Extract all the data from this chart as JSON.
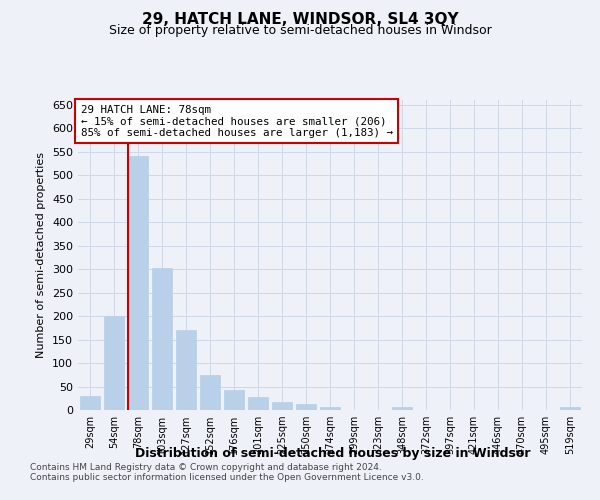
{
  "title": "29, HATCH LANE, WINDSOR, SL4 3QY",
  "subtitle": "Size of property relative to semi-detached houses in Windsor",
  "xlabel": "Distribution of semi-detached houses by size in Windsor",
  "ylabel": "Number of semi-detached properties",
  "categories": [
    "29sqm",
    "54sqm",
    "78sqm",
    "103sqm",
    "127sqm",
    "152sqm",
    "176sqm",
    "201sqm",
    "225sqm",
    "250sqm",
    "274sqm",
    "299sqm",
    "323sqm",
    "348sqm",
    "372sqm",
    "397sqm",
    "421sqm",
    "446sqm",
    "470sqm",
    "495sqm",
    "519sqm"
  ],
  "values": [
    30,
    200,
    541,
    303,
    170,
    75,
    42,
    27,
    16,
    13,
    7,
    0,
    0,
    6,
    0,
    0,
    0,
    0,
    0,
    0,
    6
  ],
  "bar_color": "#b8d0e8",
  "bar_edge_color": "#b8d0e8",
  "highlight_index": 2,
  "red_line_index": 2,
  "annotation_text": "29 HATCH LANE: 78sqm\n← 15% of semi-detached houses are smaller (206)\n85% of semi-detached houses are larger (1,183) →",
  "annotation_box_color": "#ffffff",
  "annotation_box_edge_color": "#cc0000",
  "ylim": [
    0,
    660
  ],
  "yticks": [
    0,
    50,
    100,
    150,
    200,
    250,
    300,
    350,
    400,
    450,
    500,
    550,
    600,
    650
  ],
  "grid_color": "#d0d8e8",
  "footnote1": "Contains HM Land Registry data © Crown copyright and database right 2024.",
  "footnote2": "Contains public sector information licensed under the Open Government Licence v3.0.",
  "background_color": "#eef2f8"
}
